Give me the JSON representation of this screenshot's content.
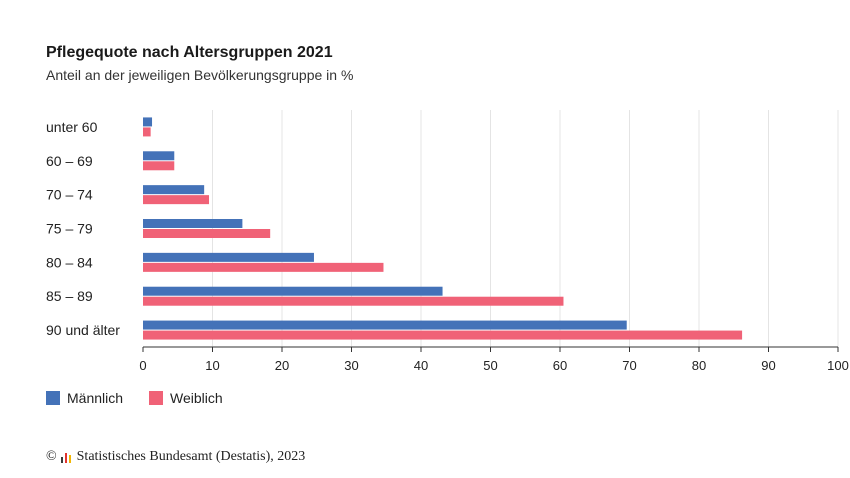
{
  "chart_data": {
    "type": "bar",
    "orientation": "horizontal",
    "title": "Pflegequote nach Altersgruppen 2021",
    "subtitle": "Anteil an der jeweiligen Bevölkerungsgruppe in %",
    "categories": [
      "unter 60",
      "60 – 69",
      "70 – 74",
      "75 – 79",
      "80 – 84",
      "85 – 89",
      "90 und älter"
    ],
    "series": [
      {
        "name": "Männlich",
        "color": "#4472b8",
        "values": [
          1.3,
          4.5,
          8.8,
          14.3,
          24.6,
          43.1,
          69.6
        ]
      },
      {
        "name": "Weiblich",
        "color": "#f06277",
        "values": [
          1.1,
          4.5,
          9.5,
          18.3,
          34.6,
          60.5,
          86.2
        ]
      }
    ],
    "xlim": [
      0,
      100
    ],
    "xticks": [
      "0",
      "10",
      "20",
      "30",
      "40",
      "50",
      "60",
      "70",
      "80",
      "90",
      "100"
    ],
    "xlabel": "",
    "ylabel": "",
    "grid": "vertical",
    "legend_position": "bottom-left"
  },
  "legend": {
    "male_label": "Männlich",
    "female_label": "Weiblich"
  },
  "source": {
    "copyright_symbol": "©",
    "text": "Statistisches Bundesamt (Destatis), 2023"
  }
}
